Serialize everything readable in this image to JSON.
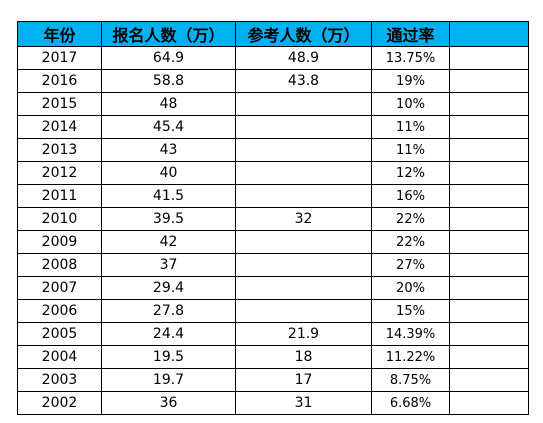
{
  "table": {
    "headers": [
      "年份",
      "报名人数（万）",
      "参考人数（万）",
      "通过率",
      ""
    ],
    "rows": [
      [
        "2017",
        "64.9",
        "48.9",
        "13.75%",
        ""
      ],
      [
        "2016",
        "58.8",
        "43.8",
        "19%",
        ""
      ],
      [
        "2015",
        "48",
        "",
        "10%",
        ""
      ],
      [
        "2014",
        "45.4",
        "",
        "11%",
        ""
      ],
      [
        "2013",
        "43",
        "",
        "11%",
        ""
      ],
      [
        "2012",
        "40",
        "",
        "12%",
        ""
      ],
      [
        "2011",
        "41.5",
        "",
        "16%",
        ""
      ],
      [
        "2010",
        "39.5",
        "32",
        "22%",
        ""
      ],
      [
        "2009",
        "42",
        "",
        "22%",
        ""
      ],
      [
        "2008",
        "37",
        "",
        "27%",
        ""
      ],
      [
        "2007",
        "29.4",
        "",
        "20%",
        ""
      ],
      [
        "2006",
        "27.8",
        "",
        "15%",
        ""
      ],
      [
        "2005",
        "24.4",
        "21.9",
        "14.39%",
        ""
      ],
      [
        "2004",
        "19.5",
        "18",
        "11.22%",
        ""
      ],
      [
        "2003",
        "19.7",
        "17",
        "8.75%",
        ""
      ],
      [
        "2002",
        "36",
        "31",
        "6.68%",
        ""
      ]
    ]
  },
  "colors": {
    "header_background": "#00b0f0",
    "grid_line": "#000000"
  }
}
